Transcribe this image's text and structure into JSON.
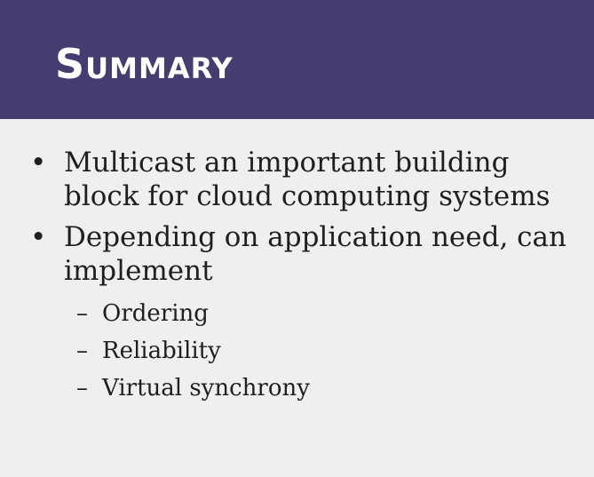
{
  "slide": {
    "title": "Summary",
    "bullets": [
      {
        "marker": "•",
        "text": "Multicast an important building block for cloud computing systems"
      },
      {
        "marker": "•",
        "text": "Depending on application need, can implement"
      }
    ],
    "sub_items": [
      {
        "marker": "–",
        "text": "Ordering"
      },
      {
        "marker": "–",
        "text": "Reliability"
      },
      {
        "marker": "–",
        "text": "Virtual synchrony"
      }
    ]
  },
  "colors": {
    "header_bg": "#443d70",
    "title_text": "#ffffff",
    "body_bg": "#efefef",
    "body_text": "#1f1f1f"
  }
}
